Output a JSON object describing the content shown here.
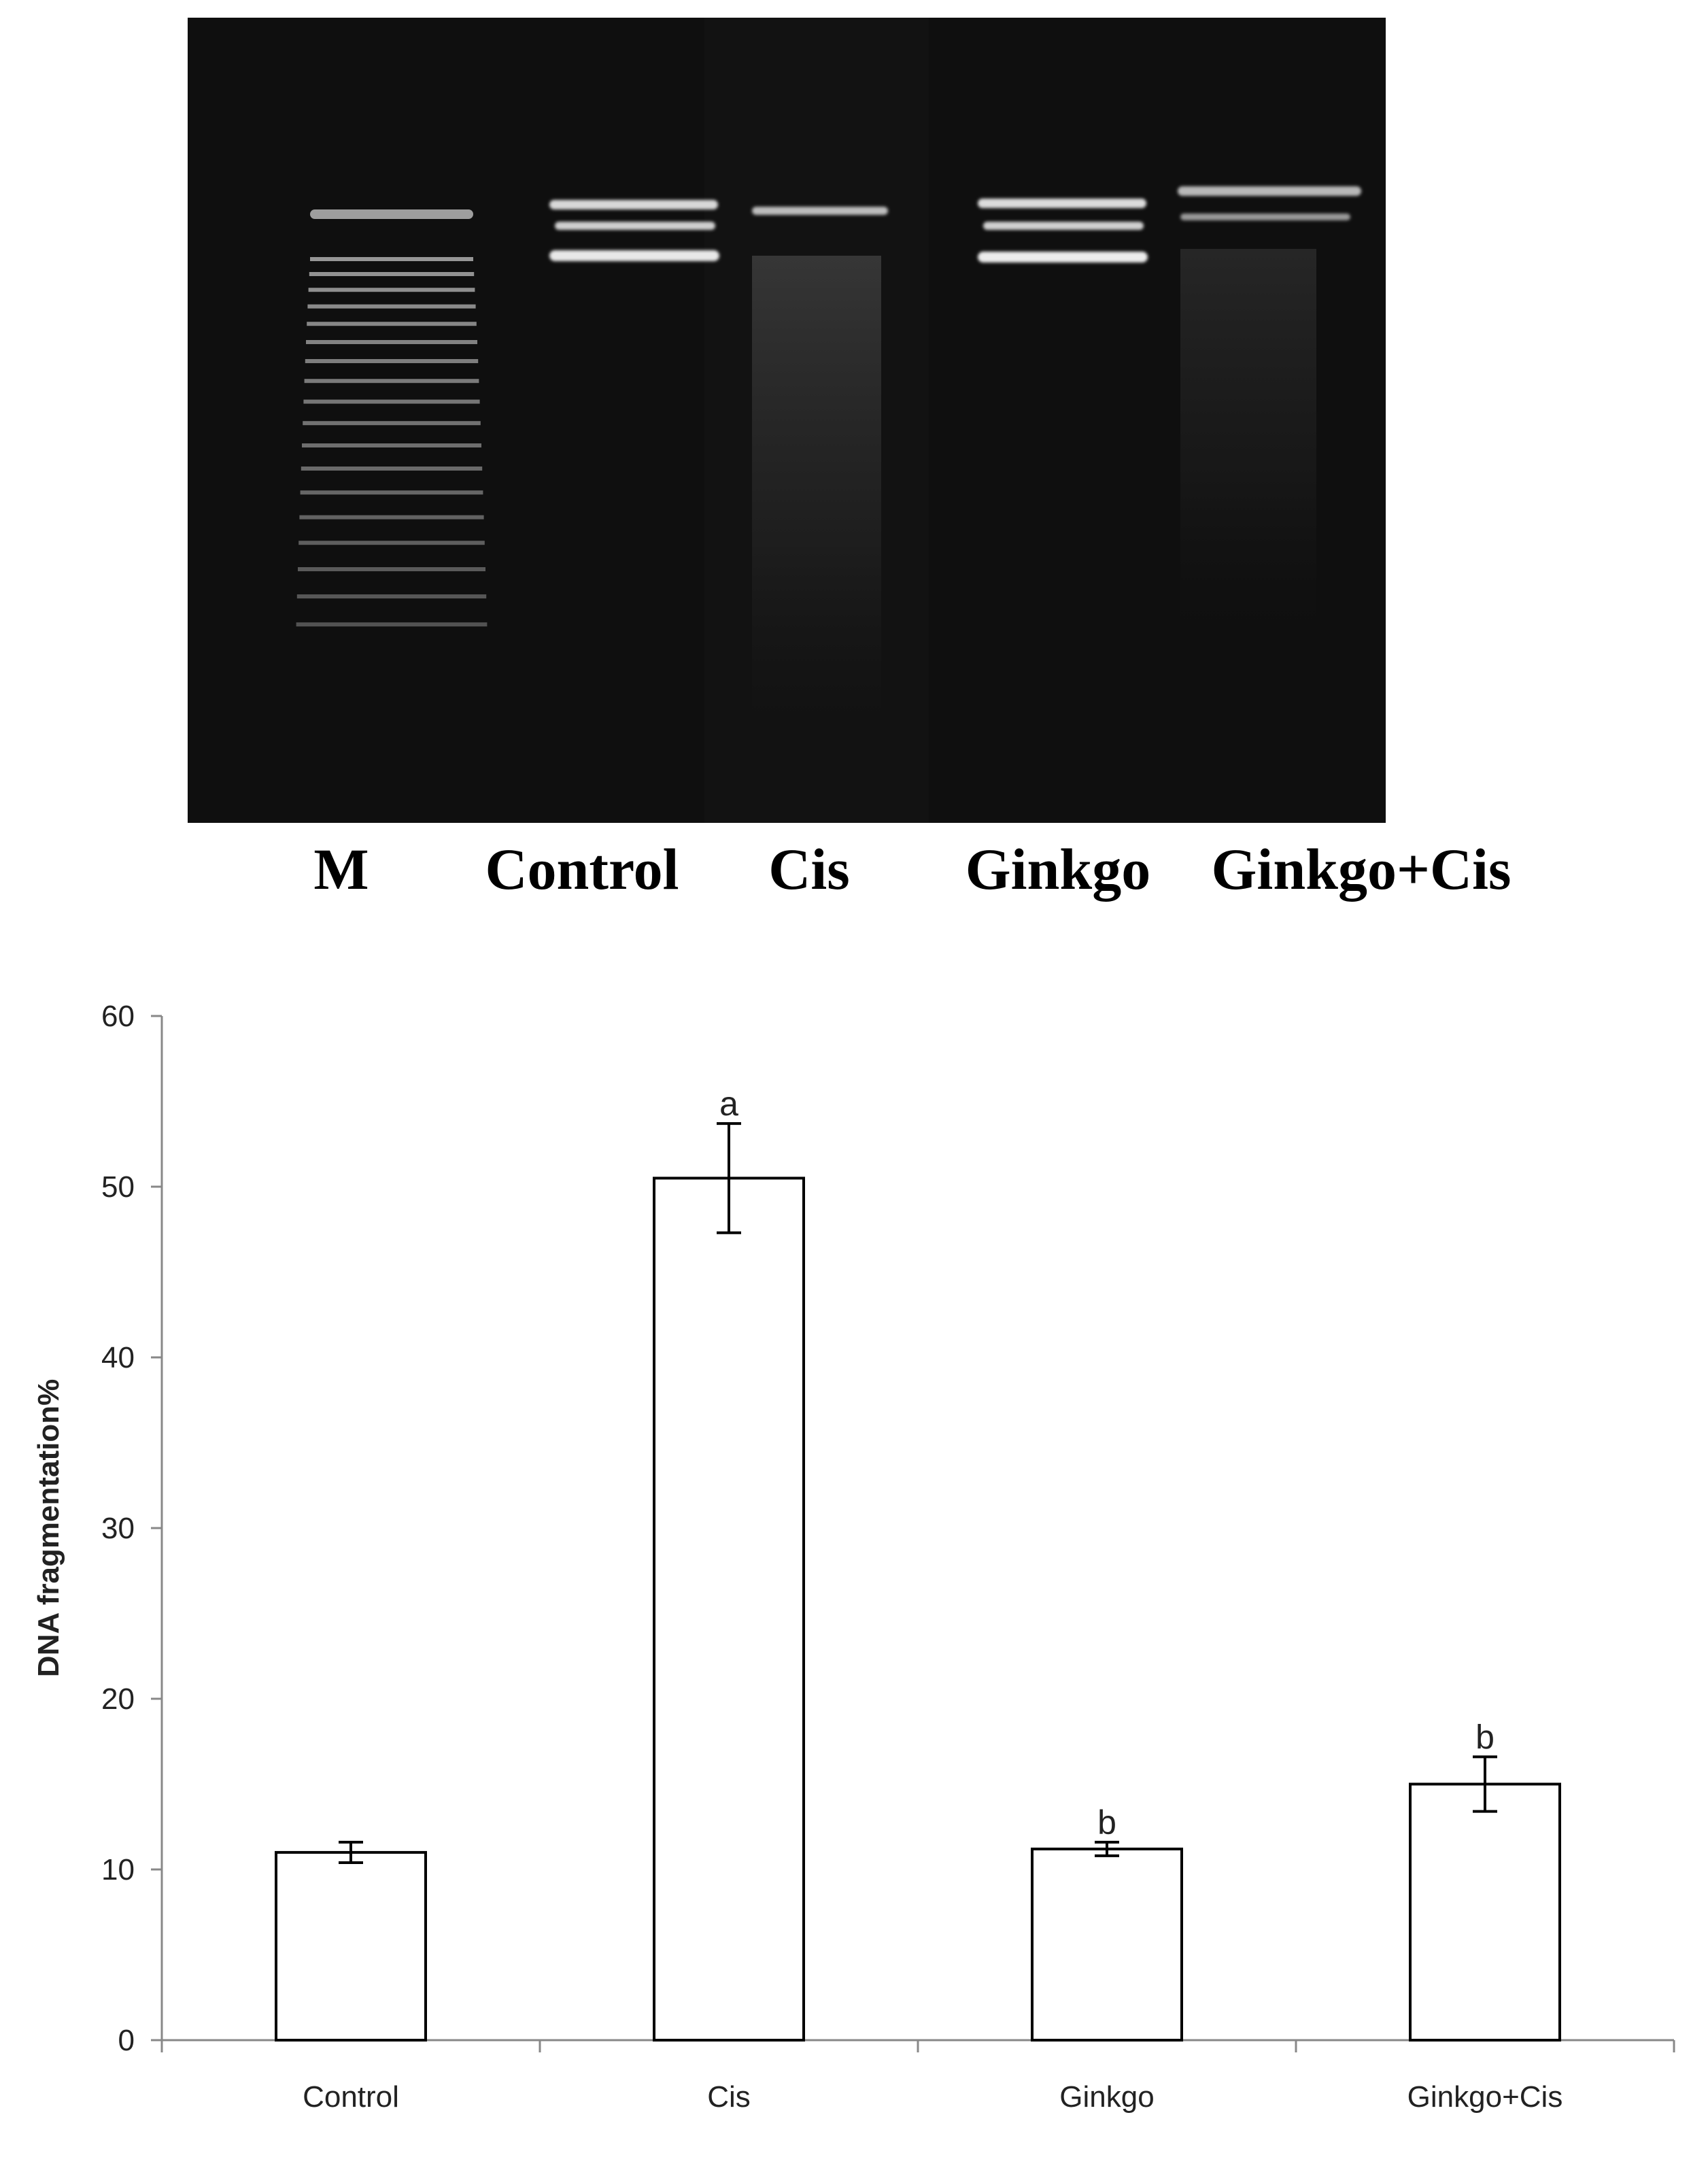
{
  "gel": {
    "lane_labels": [
      "M",
      "Control",
      "Cis",
      "Ginkgo",
      "Ginkgo+Cis"
    ]
  },
  "chart_data": {
    "type": "bar",
    "categories": [
      "Control",
      "Cis",
      "Ginkgo",
      "Ginkgo+Cis"
    ],
    "values": [
      11.0,
      50.5,
      11.2,
      15.0
    ],
    "errors": [
      0.6,
      3.2,
      0.4,
      1.6
    ],
    "significance_labels": [
      "",
      "a",
      "b",
      "b"
    ],
    "title": "",
    "xlabel": "",
    "ylabel": "DNA fragmentation%",
    "ylim": [
      0,
      60
    ],
    "yticks": [
      0,
      10,
      20,
      30,
      40,
      50,
      60
    ],
    "grid": false,
    "legend": "none",
    "bar_fill": "#ffffff",
    "bar_stroke": "#000000"
  }
}
